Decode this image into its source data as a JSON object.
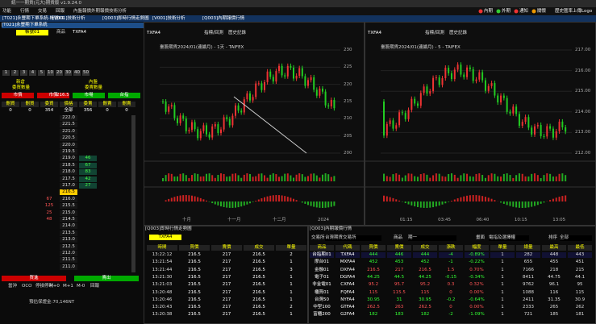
{
  "title_bar": {
    "title": "統一一期貨(元大)期貨版 v1.9.24.0"
  },
  "menu": {
    "items": [
      "功能",
      "行情",
      "交易",
      "回報",
      "內盤報價",
      "外期報價",
      "技術分析"
    ],
    "right": [
      "內期",
      "外期",
      "通知",
      "關懷",
      "歷史匯率",
      "上傳Logo"
    ]
  },
  "tabs": [
    "[T021]永豐期下單系統-帳號01",
    "[V001]技術分析",
    "[Q003]即時行情走勢圖",
    "[V001]技術分析",
    "[Q003]內期報價行情"
  ],
  "order_panel": {
    "title": "[T021]永豐期下單系統",
    "account": "帳號01",
    "product": "商品",
    "symbol": "TXFA4",
    "qty_buttons": [
      "1",
      "2",
      "3",
      "4",
      "5",
      "10",
      "20",
      "30",
      "40",
      "50"
    ],
    "head_left": "新倉",
    "head_right": "內盤",
    "sub_left": "委買數量",
    "sub_right": "委賣數量",
    "actions": [
      "市價",
      "市價",
      "市場",
      "台指"
    ],
    "last": "216.5",
    "columns": [
      "刪買",
      "刪買",
      "委買",
      "價格",
      "委賣",
      "刪賣",
      "刪賣"
    ],
    "summary": [
      "0",
      "0",
      "354",
      "全部",
      "356",
      "0",
      "0"
    ],
    "rows": [
      {
        "price": "222.0"
      },
      {
        "price": "221.5"
      },
      {
        "price": "221.0"
      },
      {
        "price": "220.5"
      },
      {
        "price": "220.0"
      },
      {
        "price": "219.5"
      },
      {
        "price": "219.0",
        "ask": "46"
      },
      {
        "price": "218.5",
        "ask": "67"
      },
      {
        "price": "218.0",
        "ask": "83"
      },
      {
        "price": "217.5",
        "ask": "42"
      },
      {
        "price": "217.0",
        "ask": "27"
      },
      {
        "price": "216.5"
      },
      {
        "price": "216.0",
        "bid": "67"
      },
      {
        "price": "215.5",
        "bid": "125"
      },
      {
        "price": "215.0",
        "bid": "25"
      },
      {
        "price": "214.5",
        "bid": "48"
      },
      {
        "price": "214.0"
      },
      {
        "price": "213.5"
      },
      {
        "price": "213.0"
      },
      {
        "price": "212.5"
      },
      {
        "price": "212.0"
      },
      {
        "price": "211.5"
      },
      {
        "price": "211.0"
      }
    ],
    "buy": "買進",
    "sell": "賣出",
    "options": [
      "當沖",
      "OCO",
      "停損停利",
      "M+0",
      "M+1",
      "M-0",
      "回報"
    ],
    "status": "預估保證金:70,146NT"
  },
  "chart1": {
    "symbol": "TXFA4",
    "title": "臺股期貨2024/01(連續月) - 1天 - TAIFEX",
    "yaxis": [
      "230",
      "225",
      "220",
      "215",
      "210",
      "205",
      "200"
    ],
    "xaxis": [
      "十月",
      "十一月",
      "十二月",
      "2024"
    ],
    "toolbar": [
      "指標/回測",
      "歷史記錄"
    ]
  },
  "chart2": {
    "symbol": "TXFA4",
    "title": "臺股期貨2024/01(連續月) - 5 - TAIFEX",
    "yaxis": [
      "217.00",
      "216.00",
      "215.00",
      "214.00",
      "213.00",
      "212.00"
    ],
    "xaxis": [
      "01:15",
      "03:45",
      "06:40",
      "10:15",
      "13:05"
    ],
    "toolbar": [
      "指標/回測",
      "歷史記錄"
    ]
  },
  "time_sales": {
    "title": "[Q003]即時行情走勢圖",
    "symbol": "TXFA4",
    "columns": [
      "時間",
      "買價",
      "賣價",
      "成交",
      "單量"
    ],
    "rows": [
      [
        "13:22:12",
        "216.5",
        "217",
        "216.5",
        "2"
      ],
      [
        "13:21:54",
        "216.5",
        "217",
        "216.5",
        "1"
      ],
      [
        "13:21:44",
        "216.5",
        "217",
        "216.5",
        "3"
      ],
      [
        "13:21:30",
        "216.5",
        "217",
        "216.5",
        "1"
      ],
      [
        "13:21:03",
        "216.5",
        "217",
        "216.5",
        "1"
      ],
      [
        "13:20:48",
        "216.5",
        "217",
        "216.5",
        "1"
      ],
      [
        "13:20:46",
        "216.5",
        "217",
        "216.5",
        "1"
      ],
      [
        "13:20:43",
        "216.5",
        "217",
        "216.5",
        "2"
      ],
      [
        "13:20:38",
        "216.5",
        "217",
        "216.5",
        "1"
      ]
    ]
  },
  "quotes": {
    "title": "[Q003]內期報價行情",
    "group_label": "交易所",
    "group": "台灣期貨交易所",
    "category_label": "商品",
    "category": "期一",
    "view_label": "畫面",
    "view": "電指及選擇權",
    "sort_label": "排序",
    "sort": "全部",
    "columns": [
      "商品",
      "代碼",
      "買價",
      "賣價",
      "成交",
      "漲跌",
      "幅度",
      "單量",
      "總量",
      "最高",
      "最低"
    ],
    "rows": [
      [
        "台指期01",
        "TXFA4",
        "444",
        "446",
        "444",
        "-4",
        "-0.89%",
        "1",
        "282",
        "448",
        "443"
      ],
      [
        "摩台01",
        "MXFA4",
        "452",
        "453",
        "452",
        "-1",
        "-0.22%",
        "1",
        "655",
        "455",
        "451"
      ],
      [
        "金融01",
        "DXFA4",
        "216.5",
        "217",
        "216.5",
        "1.5",
        "0.70%",
        "1",
        "7166",
        "218",
        "215"
      ],
      [
        "電子01",
        "DGFA4",
        "44.25",
        "44.5",
        "44.25",
        "-0.15",
        "-0.34%",
        "1",
        "8411",
        "44.75",
        "44.1"
      ],
      [
        "非金電01",
        "CXFA4",
        "95.2",
        "95.7",
        "95.2",
        "0.3",
        "0.32%",
        "1",
        "9762",
        "96.1",
        "95"
      ],
      [
        "櫃買01",
        "FQFA4",
        "115",
        "115.5",
        "115",
        "0",
        "0.00%",
        "1",
        "1088",
        "116",
        "115"
      ],
      [
        "台灣50",
        "NYFA4",
        "30.95",
        "31",
        "30.95",
        "-0.2",
        "-0.64%",
        "1",
        "2411",
        "31.35",
        "30.9"
      ],
      [
        "中型100",
        "GTFA4",
        "262.5",
        "263",
        "262.5",
        "0",
        "0.00%",
        "1",
        "2333",
        "265",
        "262"
      ],
      [
        "富櫃200",
        "G2FA4",
        "182",
        "183",
        "182",
        "-2",
        "-1.09%",
        "1",
        "721",
        "185",
        "181"
      ]
    ]
  }
}
